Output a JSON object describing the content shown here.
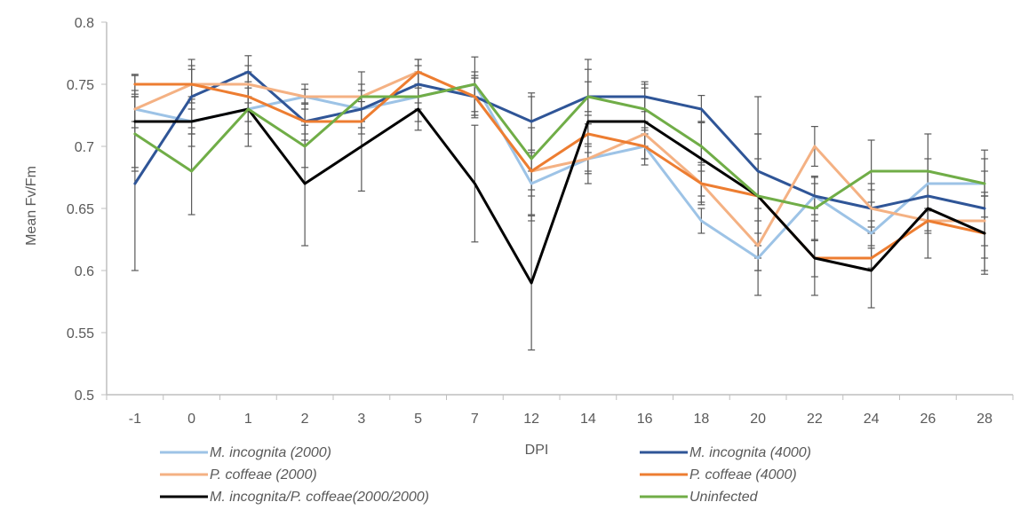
{
  "chart_data": {
    "type": "line",
    "xlabel": "DPI",
    "ylabel": "Mean Fv/Fm",
    "categories": [
      "-1",
      "0",
      "1",
      "2",
      "3",
      "5",
      "7",
      "12",
      "14",
      "16",
      "18",
      "20",
      "22",
      "24",
      "26",
      "28"
    ],
    "ylim": [
      0.5,
      0.8
    ],
    "yticks": [
      "0.5",
      "0.55",
      "0.6",
      "0.65",
      "0.7",
      "0.75",
      "0.8"
    ],
    "grid": false,
    "legend_position": "bottom",
    "series": [
      {
        "name": "M. incognita (2000)",
        "color": "#9DC3E6",
        "values": [
          0.73,
          0.72,
          0.73,
          0.74,
          0.73,
          0.74,
          0.75,
          0.67,
          0.69,
          0.7,
          0.64,
          0.61,
          0.66,
          0.63,
          0.67,
          0.67
        ],
        "errors": [
          0.01,
          0.01,
          0.01,
          0.01,
          0.01,
          0.01,
          0.01,
          0.01,
          0.01,
          0.01,
          0.01,
          0.01,
          0.01,
          0.01,
          0.01,
          0.01
        ]
      },
      {
        "name": "M. incognita (4000)",
        "color": "#2F5597",
        "values": [
          0.67,
          0.74,
          0.76,
          0.72,
          0.73,
          0.75,
          0.74,
          0.72,
          0.74,
          0.74,
          0.73,
          0.68,
          0.66,
          0.65,
          0.66,
          0.65
        ],
        "errors": [
          0.07,
          0.03,
          0.013,
          0.015,
          0.015,
          0.015,
          0.015,
          0.023,
          0.022,
          0.012,
          0.011,
          0.03,
          0.015,
          0.02,
          0.02,
          0.04
        ]
      },
      {
        "name": "P. coffeae (2000)",
        "color": "#F4B183",
        "values": [
          0.73,
          0.75,
          0.75,
          0.74,
          0.74,
          0.76,
          0.74,
          0.68,
          0.69,
          0.71,
          0.67,
          0.62,
          0.7,
          0.65,
          0.64,
          0.64
        ],
        "errors": [
          0.015,
          0.015,
          0.015,
          0.006,
          0.01,
          0.01,
          0.015,
          0.015,
          0.012,
          0.01,
          0.015,
          0.02,
          0.016,
          0.015,
          0.01,
          0.02
        ]
      },
      {
        "name": "P. coffeae (4000)",
        "color": "#ED7D31",
        "values": [
          0.75,
          0.75,
          0.74,
          0.72,
          0.72,
          0.76,
          0.74,
          0.68,
          0.71,
          0.7,
          0.67,
          0.66,
          0.61,
          0.61,
          0.64,
          0.63
        ],
        "errors": [
          0.008,
          0.012,
          0.012,
          0.01,
          0.01,
          0.01,
          0.017,
          0.035,
          0.015,
          0.015,
          0.017,
          0.03,
          0.015,
          0.008,
          0.008,
          0.03
        ]
      },
      {
        "name": "M. incognita/P. coffeae(2000/2000)",
        "color": "#000000",
        "values": [
          0.72,
          0.72,
          0.73,
          0.67,
          0.7,
          0.73,
          0.67,
          0.59,
          0.72,
          0.72,
          0.69,
          0.66,
          0.61,
          0.6,
          0.65,
          0.63
        ],
        "errors": [
          0.037,
          0.02,
          0.03,
          0.05,
          0.036,
          0.017,
          0.047,
          0.054,
          0.05,
          0.03,
          0.03,
          0.08,
          0.03,
          0.03,
          0.04,
          0.033
        ]
      },
      {
        "name": "Uninfected",
        "color": "#70AD47",
        "values": [
          0.71,
          0.68,
          0.73,
          0.7,
          0.74,
          0.74,
          0.75,
          0.69,
          0.74,
          0.73,
          0.7,
          0.66,
          0.65,
          0.68,
          0.68,
          0.67
        ],
        "errors": [
          0.03,
          0.035,
          0.02,
          0.017,
          0.02,
          0.02,
          0.022,
          0.05,
          0.012,
          0.017,
          0.02,
          0.05,
          0.026,
          0.025,
          0.03,
          0.027
        ]
      }
    ]
  }
}
